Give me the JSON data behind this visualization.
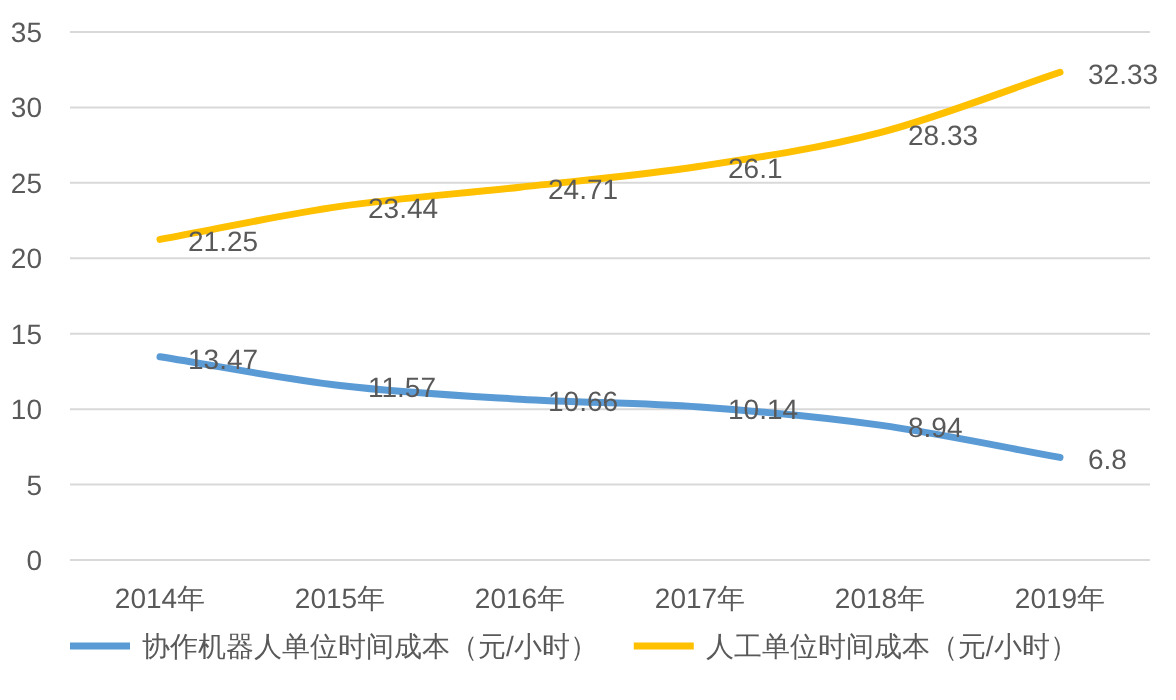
{
  "chart_data": {
    "type": "line",
    "categories": [
      "2014年",
      "2015年",
      "2016年",
      "2017年",
      "2018年",
      "2019年"
    ],
    "series": [
      {
        "name": "协作机器人单位时间成本（元/小时）",
        "color": "#5b9bd5",
        "values": [
          13.47,
          11.57,
          10.66,
          10.14,
          8.94,
          6.8
        ]
      },
      {
        "name": "人工单位时间成本（元/小时）",
        "color": "#ffc000",
        "values": [
          21.25,
          23.44,
          24.71,
          26.1,
          28.33,
          32.33
        ]
      }
    ],
    "ylim": [
      0,
      35
    ],
    "yticks": [
      0,
      5,
      10,
      15,
      20,
      25,
      30,
      35
    ],
    "grid": "y",
    "legend": "bottom",
    "data_labels": true,
    "marker": "none",
    "line_style": "solid"
  }
}
